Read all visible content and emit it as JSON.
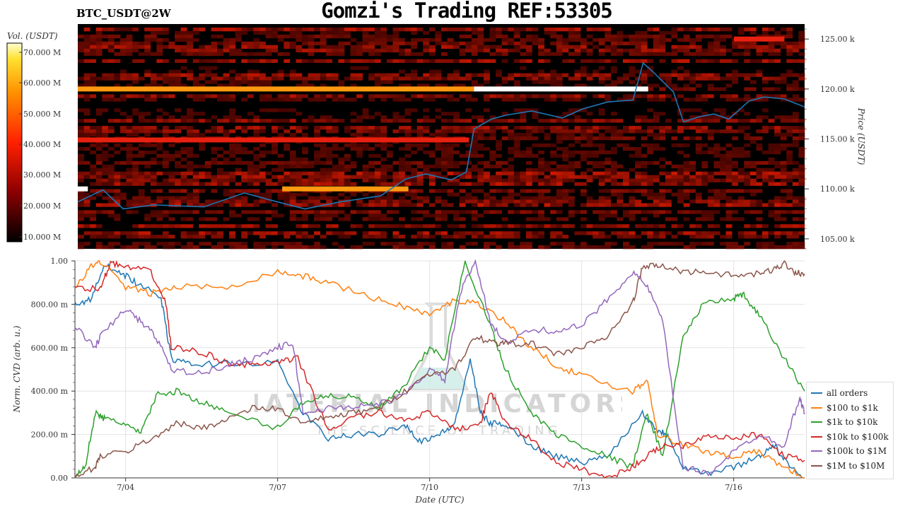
{
  "header": {
    "symbol": "BTC_USDT@2W",
    "title": "Gomzi's Trading REF:53305"
  },
  "colorbar": {
    "label": "Vol. (USDT)",
    "ticks": [
      "10.000 M",
      "20.000 M",
      "30.000 M",
      "40.000 M",
      "50.000 M",
      "60.000 M",
      "70.000 M"
    ],
    "colors": [
      "#000000",
      "#8b0000",
      "#ff2000",
      "#ff8c00",
      "#ffd700",
      "#ffffff"
    ]
  },
  "watermark": {
    "line1": "MATERIAL INDICATORS",
    "line2": "THE SCIENCE OF TRADING"
  },
  "chart_data": [
    {
      "type": "heatmap",
      "title": "BTC_USDT@2W",
      "ylabel": "Price (USDT)",
      "ylim": [
        104000,
        126500
      ],
      "yticks": [
        "105.00 k",
        "110.00 k",
        "115.00 k",
        "120.00 k",
        "125.00 k"
      ],
      "heat_bands": [
        {
          "price": 120000,
          "x_start": 0.0,
          "x_end": 7.85,
          "intensity": 0.75
        },
        {
          "price": 120000,
          "x_start": 7.85,
          "x_end": 11.3,
          "intensity": 1.0
        },
        {
          "price": 125000,
          "x_start": 13.0,
          "x_end": 14.0,
          "intensity": 0.45
        },
        {
          "price": 114900,
          "x_start": 0.0,
          "x_end": 7.75,
          "intensity": 0.45
        },
        {
          "price": 110000,
          "x_start": 4.05,
          "x_end": 6.55,
          "intensity": 0.7
        },
        {
          "price": 110000,
          "x_start": 0.0,
          "x_end": 0.2,
          "intensity": 1.0
        }
      ],
      "price_series": {
        "name": "BTC price",
        "color": "#1f77b4",
        "x": [
          0,
          0.5,
          0.9,
          1.5,
          2.5,
          3.3,
          3.8,
          4.5,
          5.2,
          6.0,
          6.5,
          6.9,
          7.4,
          7.7,
          7.85,
          8.2,
          8.5,
          9.0,
          9.6,
          10.0,
          10.5,
          11.0,
          11.2,
          11.4,
          11.8,
          12.0,
          12.3,
          12.6,
          12.9,
          13.3,
          13.6,
          14.0,
          14.4
        ],
        "y": [
          108700,
          109900,
          108000,
          108400,
          108200,
          109600,
          108900,
          108000,
          108700,
          109300,
          111000,
          111500,
          110900,
          111700,
          116000,
          117000,
          117400,
          117800,
          117100,
          118000,
          118700,
          118900,
          122600,
          121700,
          119700,
          116700,
          117200,
          117500,
          117000,
          118800,
          119200,
          119000,
          118200
        ]
      }
    },
    {
      "type": "line",
      "xlabel": "Date (UTC)",
      "ylabel": "Norm. CVD (arb. u.)",
      "ylim": [
        0,
        1
      ],
      "xlim": [
        0,
        14.4
      ],
      "xticks": [
        {
          "value": 1,
          "label": "7/04"
        },
        {
          "value": 4,
          "label": "7/07"
        },
        {
          "value": 7,
          "label": "7/10"
        },
        {
          "value": 10,
          "label": "7/13"
        },
        {
          "value": 13,
          "label": "7/16"
        }
      ],
      "yticks": [
        "0.00",
        "200.00 m",
        "400.00 m",
        "600.00 m",
        "800.00 m",
        "1.00"
      ],
      "series": [
        {
          "name": "all orders",
          "color": "#1f77b4",
          "x": [
            0,
            0.3,
            0.6,
            0.9,
            1.2,
            1.7,
            1.9,
            2.3,
            3.0,
            4.0,
            4.5,
            5.0,
            5.5,
            6.0,
            6.5,
            6.8,
            7.2,
            7.5,
            7.8,
            8.0,
            8.2,
            8.5,
            9.0,
            9.5,
            10.0,
            10.5,
            11.2,
            11.5,
            11.7,
            12.0,
            12.5,
            13.0,
            13.5,
            13.8,
            14.1,
            14.4
          ],
          "y": [
            0.8,
            0.82,
            0.98,
            0.95,
            0.9,
            0.83,
            0.55,
            0.52,
            0.53,
            0.53,
            0.3,
            0.18,
            0.2,
            0.2,
            0.25,
            0.17,
            0.2,
            0.25,
            0.55,
            0.3,
            0.25,
            0.25,
            0.15,
            0.1,
            0.07,
            0.1,
            0.3,
            0.22,
            0.2,
            0.05,
            0.02,
            0.05,
            0.1,
            0.15,
            0.05,
            0.0
          ]
        },
        {
          "name": "$100 to $1k",
          "color": "#ff7f0e",
          "x": [
            0,
            0.3,
            0.5,
            1.0,
            1.5,
            2.0,
            3.0,
            4.0,
            4.5,
            5.0,
            6.0,
            6.5,
            7.0,
            7.5,
            8.0,
            8.5,
            9.0,
            9.5,
            10.0,
            11.0,
            11.3,
            11.5,
            12.0,
            12.5,
            13.0,
            13.5,
            14.0,
            14.4
          ],
          "y": [
            0.88,
            0.97,
            1.0,
            0.88,
            0.85,
            0.88,
            0.88,
            0.95,
            0.93,
            0.9,
            0.82,
            0.79,
            0.75,
            0.82,
            0.8,
            0.72,
            0.6,
            0.52,
            0.47,
            0.4,
            0.45,
            0.2,
            0.15,
            0.12,
            0.1,
            0.12,
            0.05,
            0.0
          ]
        },
        {
          "name": "$1k to $10k",
          "color": "#2ca02c",
          "x": [
            0,
            0.2,
            0.4,
            0.6,
            1.0,
            1.3,
            1.6,
            2.0,
            2.5,
            3.0,
            4.0,
            4.5,
            5.0,
            5.5,
            6.0,
            6.5,
            7.0,
            7.3,
            7.7,
            8.2,
            8.5,
            9.0,
            9.5,
            10.0,
            10.5,
            11.0,
            11.3,
            11.6,
            12.0,
            12.4,
            13.0,
            13.2,
            13.5,
            14.0,
            14.4
          ],
          "y": [
            0.0,
            0.05,
            0.3,
            0.27,
            0.25,
            0.2,
            0.38,
            0.4,
            0.35,
            0.3,
            0.23,
            0.35,
            0.38,
            0.37,
            0.32,
            0.42,
            0.6,
            0.55,
            1.0,
            0.7,
            0.5,
            0.3,
            0.2,
            0.15,
            0.1,
            0.05,
            0.3,
            0.1,
            0.65,
            0.8,
            0.83,
            0.84,
            0.75,
            0.55,
            0.4
          ]
        },
        {
          "name": "$10k to $100k",
          "color": "#d62728",
          "x": [
            0,
            0.5,
            0.7,
            1.0,
            1.5,
            1.8,
            1.9,
            2.5,
            3.0,
            3.5,
            4.0,
            4.4,
            5.0,
            5.5,
            6.0,
            6.5,
            7.0,
            7.5,
            8.0,
            8.2,
            8.5,
            9.0,
            9.5,
            10.0,
            10.5,
            11.0,
            11.3,
            11.6,
            12.0,
            12.5,
            13.0,
            13.5,
            14.0,
            14.4
          ],
          "y": [
            0.88,
            0.87,
            0.99,
            0.97,
            0.95,
            0.8,
            0.6,
            0.58,
            0.53,
            0.52,
            0.53,
            0.55,
            0.22,
            0.28,
            0.3,
            0.27,
            0.3,
            0.22,
            0.25,
            0.4,
            0.25,
            0.18,
            0.07,
            0.04,
            0.0,
            0.05,
            0.1,
            0.15,
            0.15,
            0.2,
            0.18,
            0.2,
            0.1,
            0.08
          ]
        },
        {
          "name": "$100k to $1M",
          "color": "#9467bd",
          "x": [
            0,
            0.4,
            0.5,
            1.0,
            1.3,
            1.6,
            1.9,
            2.5,
            3.0,
            3.5,
            4.0,
            4.3,
            4.5,
            5.0,
            5.5,
            6.0,
            6.5,
            7.0,
            7.3,
            7.6,
            7.9,
            8.2,
            8.5,
            9.0,
            9.5,
            10.0,
            10.5,
            11.0,
            11.3,
            11.6,
            12.0,
            12.5,
            13.0,
            13.5,
            14.0,
            14.3,
            14.4
          ],
          "y": [
            0.7,
            0.6,
            0.65,
            0.78,
            0.72,
            0.65,
            0.5,
            0.48,
            0.52,
            0.55,
            0.6,
            0.62,
            0.3,
            0.32,
            0.33,
            0.34,
            0.38,
            0.5,
            0.45,
            0.85,
            1.0,
            0.72,
            0.62,
            0.68,
            0.68,
            0.7,
            0.82,
            0.95,
            0.88,
            0.72,
            0.05,
            0.02,
            0.12,
            0.2,
            0.15,
            0.37,
            0.3
          ]
        },
        {
          "name": "$1M to $10M",
          "color": "#8c564b",
          "x": [
            0,
            0.4,
            0.5,
            1.0,
            1.5,
            2.0,
            2.5,
            3.0,
            3.5,
            4.0,
            4.5,
            5.0,
            5.5,
            6.0,
            6.5,
            7.0,
            7.5,
            7.9,
            8.3,
            8.5,
            9.0,
            9.5,
            10.0,
            10.5,
            11.0,
            11.2,
            11.5,
            12.0,
            12.5,
            13.0,
            13.5,
            13.8,
            14.0,
            14.2,
            14.4
          ],
          "y": [
            0.0,
            0.05,
            0.1,
            0.12,
            0.18,
            0.25,
            0.23,
            0.27,
            0.32,
            0.32,
            0.25,
            0.28,
            0.3,
            0.32,
            0.4,
            0.48,
            0.5,
            0.65,
            0.62,
            0.62,
            0.62,
            0.57,
            0.6,
            0.65,
            0.8,
            0.97,
            0.98,
            0.95,
            0.95,
            0.93,
            0.94,
            0.96,
            0.99,
            0.95,
            0.94
          ]
        }
      ]
    }
  ]
}
